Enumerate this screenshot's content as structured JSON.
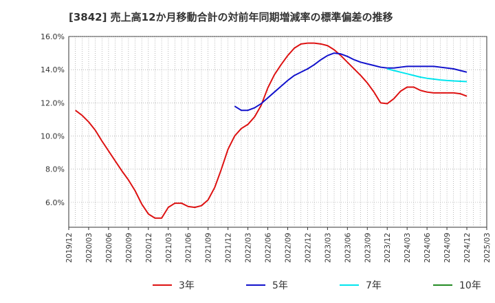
{
  "chart_data": {
    "type": "line",
    "title": "[3842]  売上高12か月移動合計の対前年同期増減率の標準偏差の推移",
    "ylim": [
      4.5,
      16.0
    ],
    "yticks": [
      6.0,
      8.0,
      10.0,
      12.0,
      14.0,
      16.0
    ],
    "ytick_labels": [
      "6.0%",
      "8.0%",
      "10.0%",
      "12.0%",
      "14.0%",
      "16.0%"
    ],
    "x_start": "2019/12",
    "x_end": "2025/03",
    "xtick_labels": [
      "2019/12",
      "2020/03",
      "2020/06",
      "2020/09",
      "2020/12",
      "2021/03",
      "2021/06",
      "2021/09",
      "2021/12",
      "2022/03",
      "2022/06",
      "2022/09",
      "2022/12",
      "2023/03",
      "2023/06",
      "2023/09",
      "2023/12",
      "2024/03",
      "2024/06",
      "2024/09",
      "2024/12",
      "2025/03"
    ],
    "grid": true,
    "legend_position": "bottom",
    "series": [
      {
        "name": "3年",
        "color": "#dd1111",
        "points": [
          [
            "2020/01",
            11.55
          ],
          [
            "2020/02",
            11.25
          ],
          [
            "2020/03",
            10.85
          ],
          [
            "2020/04",
            10.35
          ],
          [
            "2020/05",
            9.7
          ],
          [
            "2020/06",
            9.1
          ],
          [
            "2020/07",
            8.5
          ],
          [
            "2020/08",
            7.9
          ],
          [
            "2020/09",
            7.35
          ],
          [
            "2020/10",
            6.7
          ],
          [
            "2020/11",
            5.9
          ],
          [
            "2020/12",
            5.3
          ],
          [
            "2021/01",
            5.05
          ],
          [
            "2021/02",
            5.05
          ],
          [
            "2021/03",
            5.7
          ],
          [
            "2021/04",
            5.95
          ],
          [
            "2021/05",
            5.95
          ],
          [
            "2021/06",
            5.75
          ],
          [
            "2021/07",
            5.7
          ],
          [
            "2021/08",
            5.8
          ],
          [
            "2021/09",
            6.15
          ],
          [
            "2021/10",
            6.9
          ],
          [
            "2021/11",
            8.0
          ],
          [
            "2021/12",
            9.2
          ],
          [
            "2022/01",
            10.0
          ],
          [
            "2022/02",
            10.45
          ],
          [
            "2022/03",
            10.7
          ],
          [
            "2022/04",
            11.15
          ],
          [
            "2022/05",
            11.85
          ],
          [
            "2022/06",
            12.9
          ],
          [
            "2022/07",
            13.7
          ],
          [
            "2022/08",
            14.3
          ],
          [
            "2022/09",
            14.85
          ],
          [
            "2022/10",
            15.3
          ],
          [
            "2022/11",
            15.55
          ],
          [
            "2022/12",
            15.6
          ],
          [
            "2023/01",
            15.6
          ],
          [
            "2023/02",
            15.55
          ],
          [
            "2023/03",
            15.45
          ],
          [
            "2023/04",
            15.2
          ],
          [
            "2023/05",
            14.85
          ],
          [
            "2023/06",
            14.45
          ],
          [
            "2023/07",
            14.05
          ],
          [
            "2023/08",
            13.65
          ],
          [
            "2023/09",
            13.2
          ],
          [
            "2023/10",
            12.65
          ],
          [
            "2023/11",
            12.0
          ],
          [
            "2023/12",
            11.95
          ],
          [
            "2024/01",
            12.25
          ],
          [
            "2024/02",
            12.7
          ],
          [
            "2024/03",
            12.95
          ],
          [
            "2024/04",
            12.95
          ],
          [
            "2024/05",
            12.75
          ],
          [
            "2024/06",
            12.65
          ],
          [
            "2024/07",
            12.6
          ],
          [
            "2024/08",
            12.6
          ],
          [
            "2024/09",
            12.6
          ],
          [
            "2024/10",
            12.6
          ],
          [
            "2024/11",
            12.55
          ],
          [
            "2024/12",
            12.4
          ]
        ]
      },
      {
        "name": "5年",
        "color": "#1111cc",
        "points": [
          [
            "2022/01",
            11.8
          ],
          [
            "2022/02",
            11.55
          ],
          [
            "2022/03",
            11.55
          ],
          [
            "2022/04",
            11.7
          ],
          [
            "2022/05",
            11.95
          ],
          [
            "2022/06",
            12.3
          ],
          [
            "2022/07",
            12.65
          ],
          [
            "2022/08",
            13.0
          ],
          [
            "2022/09",
            13.35
          ],
          [
            "2022/10",
            13.65
          ],
          [
            "2022/11",
            13.85
          ],
          [
            "2022/12",
            14.05
          ],
          [
            "2023/01",
            14.3
          ],
          [
            "2023/02",
            14.6
          ],
          [
            "2023/03",
            14.85
          ],
          [
            "2023/04",
            15.0
          ],
          [
            "2023/05",
            14.95
          ],
          [
            "2023/06",
            14.8
          ],
          [
            "2023/07",
            14.6
          ],
          [
            "2023/08",
            14.45
          ],
          [
            "2023/09",
            14.35
          ],
          [
            "2023/10",
            14.25
          ],
          [
            "2023/11",
            14.15
          ],
          [
            "2023/12",
            14.1
          ],
          [
            "2024/01",
            14.1
          ],
          [
            "2024/02",
            14.15
          ],
          [
            "2024/03",
            14.2
          ],
          [
            "2024/04",
            14.2
          ],
          [
            "2024/05",
            14.2
          ],
          [
            "2024/06",
            14.2
          ],
          [
            "2024/07",
            14.2
          ],
          [
            "2024/08",
            14.15
          ],
          [
            "2024/09",
            14.1
          ],
          [
            "2024/10",
            14.05
          ],
          [
            "2024/11",
            13.95
          ],
          [
            "2024/12",
            13.85
          ]
        ]
      },
      {
        "name": "7年",
        "color": "#00e5ee",
        "points": [
          [
            "2023/12",
            14.05
          ],
          [
            "2024/01",
            13.95
          ],
          [
            "2024/02",
            13.85
          ],
          [
            "2024/03",
            13.75
          ],
          [
            "2024/04",
            13.65
          ],
          [
            "2024/05",
            13.55
          ],
          [
            "2024/06",
            13.48
          ],
          [
            "2024/07",
            13.43
          ],
          [
            "2024/08",
            13.38
          ],
          [
            "2024/09",
            13.35
          ],
          [
            "2024/10",
            13.32
          ],
          [
            "2024/11",
            13.3
          ],
          [
            "2024/12",
            13.28
          ]
        ]
      },
      {
        "name": "10年",
        "color": "#228b22",
        "points": []
      }
    ]
  }
}
